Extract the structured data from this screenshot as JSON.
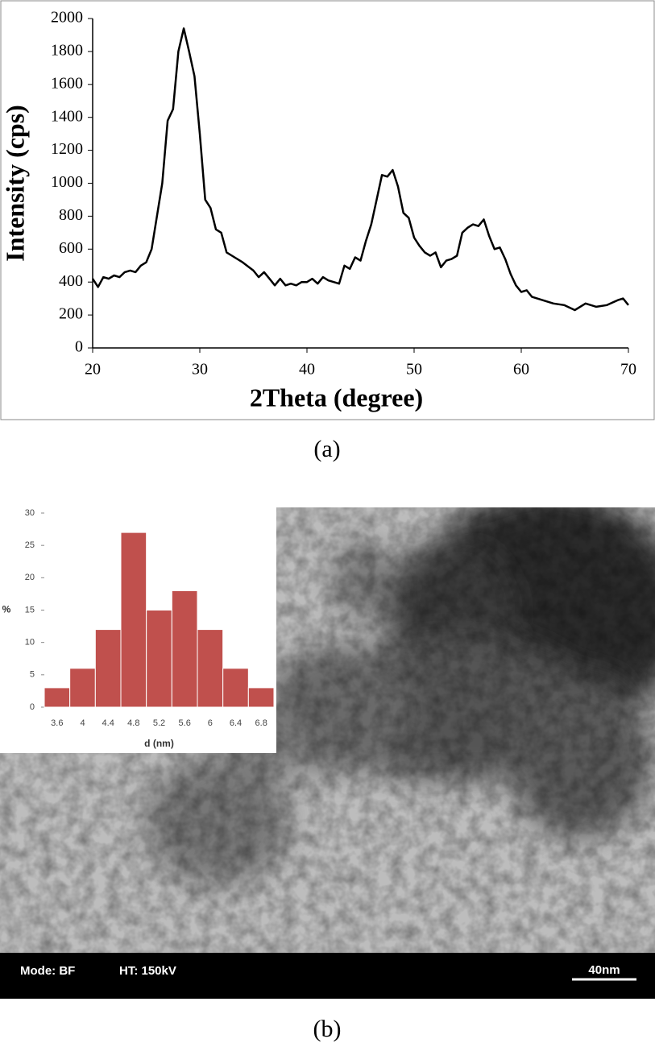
{
  "chart_data": [
    {
      "type": "line",
      "xlabel": "2Theta (degree)",
      "ylabel": "Intensity (cps)",
      "xlim": [
        20,
        70
      ],
      "xticks": [
        20,
        30,
        40,
        50,
        60,
        70
      ],
      "ylim": [
        0,
        2000
      ],
      "yticks": [
        0,
        200,
        400,
        600,
        800,
        1000,
        1200,
        1400,
        1600,
        1800,
        2000
      ],
      "color": "#000000",
      "x": [
        20,
        20.5,
        21,
        21.5,
        22,
        22.5,
        23,
        23.5,
        24,
        24.5,
        25,
        25.5,
        26,
        26.5,
        27,
        27.5,
        28,
        28.5,
        29,
        29.5,
        30,
        30.5,
        31,
        31.5,
        32,
        32.5,
        33,
        34,
        35,
        35.5,
        36,
        36.5,
        37,
        37.5,
        38,
        38.5,
        39,
        39.5,
        40,
        40.5,
        41,
        41.5,
        42,
        42.5,
        43,
        43.5,
        44,
        44.5,
        45,
        45.5,
        46,
        46.5,
        47,
        47.5,
        48,
        48.5,
        49,
        49.5,
        50,
        50.5,
        51,
        51.5,
        52,
        52.5,
        53,
        53.5,
        54,
        54.5,
        55,
        55.5,
        56,
        56.5,
        57,
        57.5,
        58,
        58.5,
        59,
        59.5,
        60,
        60.5,
        61,
        62,
        63,
        64,
        65,
        66,
        67,
        68,
        69,
        69.5,
        70
      ],
      "values": [
        420,
        370,
        430,
        420,
        440,
        430,
        460,
        470,
        460,
        500,
        520,
        600,
        800,
        1000,
        1380,
        1450,
        1800,
        1940,
        1800,
        1650,
        1300,
        900,
        850,
        720,
        700,
        580,
        560,
        520,
        470,
        430,
        460,
        420,
        380,
        420,
        380,
        390,
        380,
        400,
        400,
        420,
        390,
        430,
        410,
        400,
        390,
        500,
        480,
        550,
        530,
        650,
        750,
        900,
        1050,
        1040,
        1080,
        980,
        820,
        790,
        670,
        620,
        580,
        560,
        580,
        490,
        530,
        540,
        560,
        700,
        730,
        750,
        740,
        780,
        680,
        600,
        610,
        540,
        450,
        380,
        340,
        350,
        310,
        290,
        270,
        260,
        230,
        270,
        250,
        260,
        290,
        300,
        260
      ]
    },
    {
      "type": "bar",
      "xlabel": "d (nm)",
      "ylabel": "%",
      "categories": [
        "3.6",
        "4",
        "4.4",
        "4.8",
        "5.2",
        "5.6",
        "6",
        "6.4",
        "6.8"
      ],
      "values": [
        3,
        6,
        12,
        27,
        15,
        18,
        12,
        6,
        3
      ],
      "color": "#c0504d",
      "ylim": [
        0,
        30
      ],
      "yticks": [
        0,
        5,
        10,
        15,
        20,
        25,
        30
      ]
    }
  ],
  "captions": [
    "(a)",
    "(b)"
  ],
  "image": {
    "labels": [
      "Mode: BF",
      "HT: 150kV"
    ],
    "scale_bar": "40nm"
  }
}
